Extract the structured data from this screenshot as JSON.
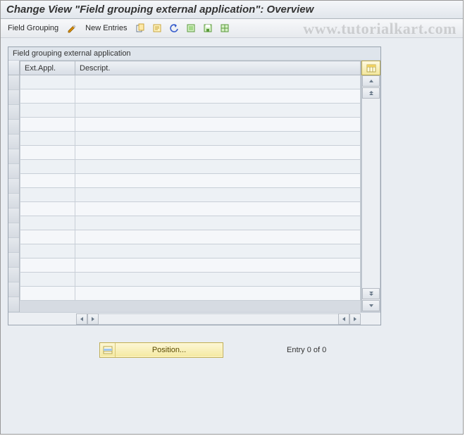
{
  "title": "Change View \"Field grouping external application\": Overview",
  "toolbar": {
    "field_grouping_label": "Field Grouping",
    "new_entries_label": "New Entries",
    "icons": {
      "pencil": "pencil-icon",
      "copy": "copy-icon",
      "note": "note-icon",
      "undo": "undo-icon",
      "select_all": "select-all-icon",
      "save": "save-icon",
      "select_block": "select-block-icon"
    }
  },
  "panel": {
    "title": "Field grouping external application",
    "columns": {
      "ext_appl": "Ext.Appl.",
      "descript": "Descript."
    },
    "row_count": 16
  },
  "footer": {
    "position_label": "Position...",
    "entry_text": "Entry 0 of 0"
  },
  "watermark": "www.tutorialkart.com",
  "colors": {
    "app_bg": "#e9edf2",
    "header_grad_top": "#eef1f5",
    "header_grad_bottom": "#d7dde5",
    "border": "#b3bac2",
    "cell_bg": "#f5f7fa",
    "cell_bg_alt": "#edf1f5",
    "gold_btn_top": "#fdf7d6",
    "gold_btn_bottom": "#f4e9a0"
  }
}
